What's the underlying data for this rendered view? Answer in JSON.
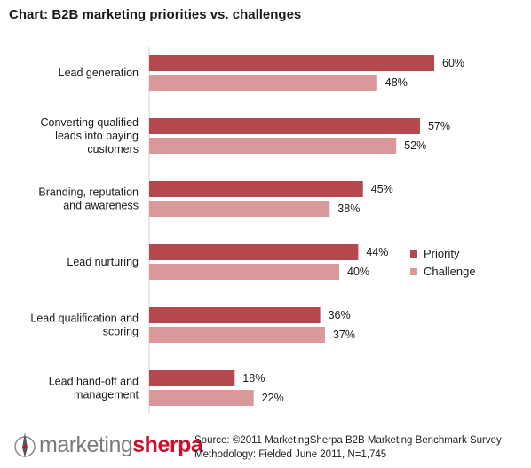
{
  "title": "Chart: B2B marketing priorities vs. challenges",
  "colors": {
    "priority": "#b5474e",
    "challenge": "#d9999b"
  },
  "chart_data": {
    "type": "bar",
    "orientation": "horizontal",
    "categories": [
      [
        "Lead generation"
      ],
      [
        "Converting qualified",
        "leads into paying",
        "customers"
      ],
      [
        "Branding, reputation",
        "and awareness"
      ],
      [
        "Lead nurturing"
      ],
      [
        "Lead qualification and",
        "scoring"
      ],
      [
        "Lead hand-off and",
        "management"
      ]
    ],
    "series": [
      {
        "name": "Priority",
        "values": [
          60,
          57,
          45,
          44,
          36,
          18
        ],
        "labels": [
          "60%",
          "57%",
          "45%",
          "44%",
          "36%",
          "18%"
        ]
      },
      {
        "name": "Challenge",
        "values": [
          48,
          52,
          38,
          40,
          37,
          22
        ],
        "labels": [
          "48%",
          "52%",
          "38%",
          "40%",
          "37%",
          "22%"
        ]
      }
    ],
    "xlim": [
      0,
      60
    ],
    "grid": false,
    "legend": "right"
  },
  "footer": {
    "logo_part1": "marketing",
    "logo_part2": "sherpa",
    "source_line": "Source: ©2011 MarketingSherpa B2B Marketing Benchmark Survey",
    "methodology_line": "Methodology: Fielded June 2011, N=1,745"
  }
}
